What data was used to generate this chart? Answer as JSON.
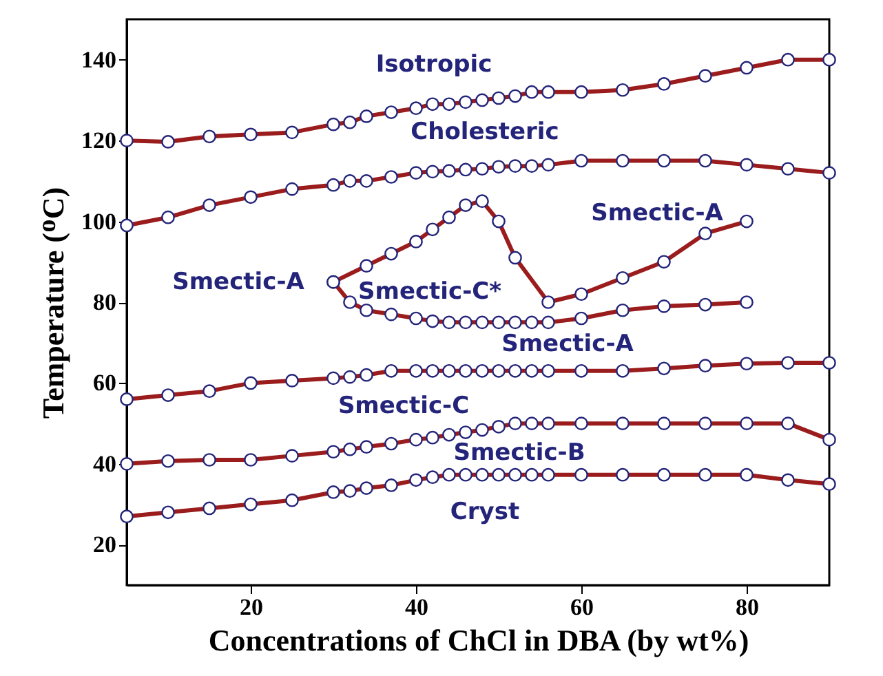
{
  "chart_data": {
    "type": "line",
    "xlabel": "Concentrations of ChCl in DBA (by wt%)",
    "ylabel": "Temperature (ᴼC)",
    "x": [
      5,
      10,
      15,
      20,
      25,
      30,
      32,
      34,
      37,
      40,
      42,
      44,
      46,
      48,
      50,
      52,
      54,
      56,
      60,
      65,
      70,
      75,
      80,
      85,
      90
    ],
    "xlim": [
      5,
      90
    ],
    "xticks": [
      20,
      40,
      60,
      80
    ],
    "ylim": [
      10,
      150
    ],
    "yticks": [
      20,
      40,
      60,
      80,
      100,
      120,
      140
    ],
    "marker": "circle",
    "line_style": "solid",
    "grid": false,
    "series": [
      {
        "color": "#9b1c1c",
        "values": [
          120,
          119.7,
          121,
          121.5,
          122,
          124,
          124.5,
          126,
          127,
          128,
          129,
          129,
          129.5,
          130,
          130.5,
          131,
          132,
          132,
          132,
          132.5,
          134,
          136,
          138,
          140,
          140
        ]
      },
      {
        "color": "#9b1c1c",
        "values": [
          99,
          101,
          104,
          106,
          108,
          109,
          110,
          110,
          111,
          112,
          112.3,
          112.5,
          112.8,
          113,
          113.5,
          113.7,
          113.7,
          114,
          115,
          115,
          115,
          115,
          114,
          113,
          112
        ]
      },
      {
        "color": "#9b1c1c",
        "x": [
          30,
          34,
          37,
          40,
          42,
          44,
          46,
          48,
          50,
          52,
          56,
          60,
          65,
          70,
          75,
          80
        ],
        "values": [
          85,
          89,
          92,
          95,
          98,
          101,
          104,
          105,
          100,
          91,
          80,
          82,
          86,
          90,
          97,
          100
        ]
      },
      {
        "color": "#9b1c1c",
        "x": [
          30,
          32,
          34,
          37,
          40,
          42,
          44,
          46,
          48,
          50,
          52,
          54,
          56,
          60,
          65,
          70,
          75,
          80
        ],
        "values": [
          85,
          80,
          78,
          77,
          76,
          75.3,
          75,
          75,
          75,
          75,
          75,
          75,
          75,
          76,
          78,
          79,
          79.4,
          80
        ]
      },
      {
        "color": "#9b1c1c",
        "values": [
          56,
          57,
          58,
          60,
          60.6,
          61.2,
          61.5,
          62,
          63,
          63,
          63,
          63,
          63,
          63,
          63,
          63,
          63,
          63,
          63,
          63,
          63.6,
          64.3,
          64.8,
          65,
          65
        ]
      },
      {
        "color": "#9b1c1c",
        "values": [
          40,
          40.7,
          41,
          41,
          42,
          43,
          43.6,
          44.2,
          45,
          46,
          46.5,
          47.2,
          47.8,
          48.4,
          49.2,
          50,
          50,
          50,
          50,
          50,
          50,
          50,
          50,
          50,
          46
        ]
      },
      {
        "color": "#9b1c1c",
        "values": [
          27,
          28,
          29,
          30,
          31,
          33,
          33.3,
          34,
          34.7,
          36,
          36.7,
          37.3,
          37.3,
          37.3,
          37.3,
          37.3,
          37.3,
          37.3,
          37.3,
          37.3,
          37.3,
          37.3,
          37.3,
          36,
          35
        ]
      }
    ],
    "annotations": [
      "Isotropic",
      "Cholesteric",
      "Smectic-A",
      "Smectic-A",
      "Smectic-C*",
      "Smectic-A",
      "Smectic-C",
      "Smectic-B",
      "Cryst"
    ]
  }
}
